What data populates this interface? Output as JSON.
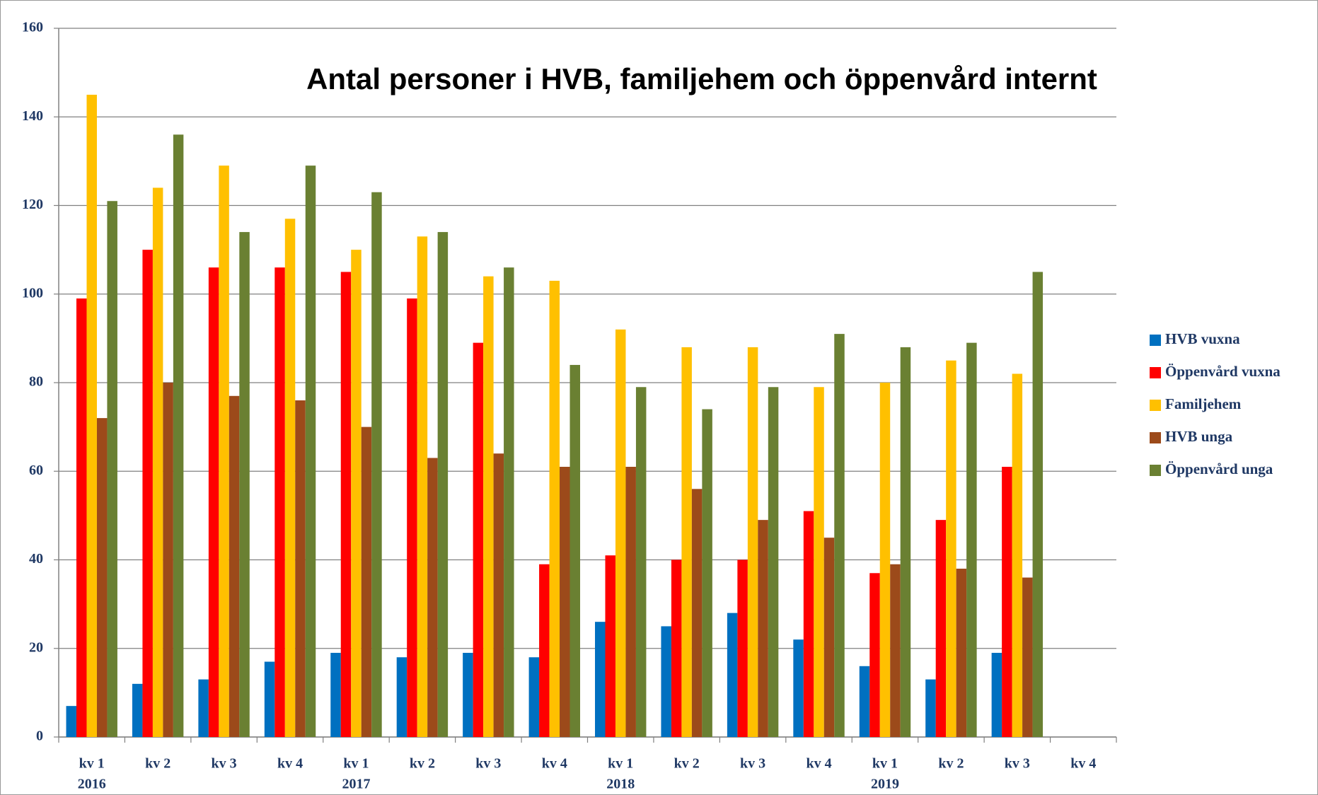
{
  "chart_data": {
    "type": "bar",
    "title": "Antal personer i HVB, familjehem och öppenvård internt",
    "categories": [
      "kv 1",
      "kv 2",
      "kv 3",
      "kv 4",
      "kv 1",
      "kv 2",
      "kv 3",
      "kv 4",
      "kv 1",
      "kv 2",
      "kv 3",
      "kv 4",
      "kv 1",
      "kv 2",
      "kv 3",
      "kv 4"
    ],
    "year_labels": [
      "2016",
      null,
      null,
      null,
      "2017",
      null,
      null,
      null,
      "2018",
      null,
      null,
      null,
      "2019",
      null,
      null,
      null
    ],
    "series": [
      {
        "name": "HVB vuxna",
        "color": "#0070c0",
        "values": [
          7,
          12,
          13,
          17,
          19,
          18,
          19,
          18,
          26,
          25,
          28,
          22,
          16,
          13,
          19,
          null
        ]
      },
      {
        "name": "Öppenvård vuxna",
        "color": "#ff0000",
        "values": [
          99,
          110,
          106,
          106,
          105,
          99,
          89,
          39,
          41,
          40,
          40,
          51,
          37,
          49,
          61,
          null
        ]
      },
      {
        "name": "Familjehem",
        "color": "#ffc000",
        "values": [
          145,
          124,
          129,
          117,
          110,
          113,
          104,
          103,
          92,
          88,
          88,
          79,
          80,
          85,
          82,
          null
        ]
      },
      {
        "name": "HVB unga",
        "color": "#9c4a1a",
        "values": [
          72,
          80,
          77,
          76,
          70,
          63,
          64,
          61,
          61,
          56,
          49,
          45,
          39,
          38,
          36,
          null
        ]
      },
      {
        "name": "Öppenvård unga",
        "color": "#6a8032",
        "values": [
          121,
          136,
          114,
          129,
          123,
          114,
          106,
          84,
          79,
          74,
          79,
          91,
          88,
          89,
          105,
          null
        ]
      }
    ],
    "ylim": [
      0,
      160
    ],
    "yticks": [
      0,
      20,
      40,
      60,
      80,
      100,
      120,
      140,
      160
    ],
    "grid": true,
    "legend": "right"
  }
}
